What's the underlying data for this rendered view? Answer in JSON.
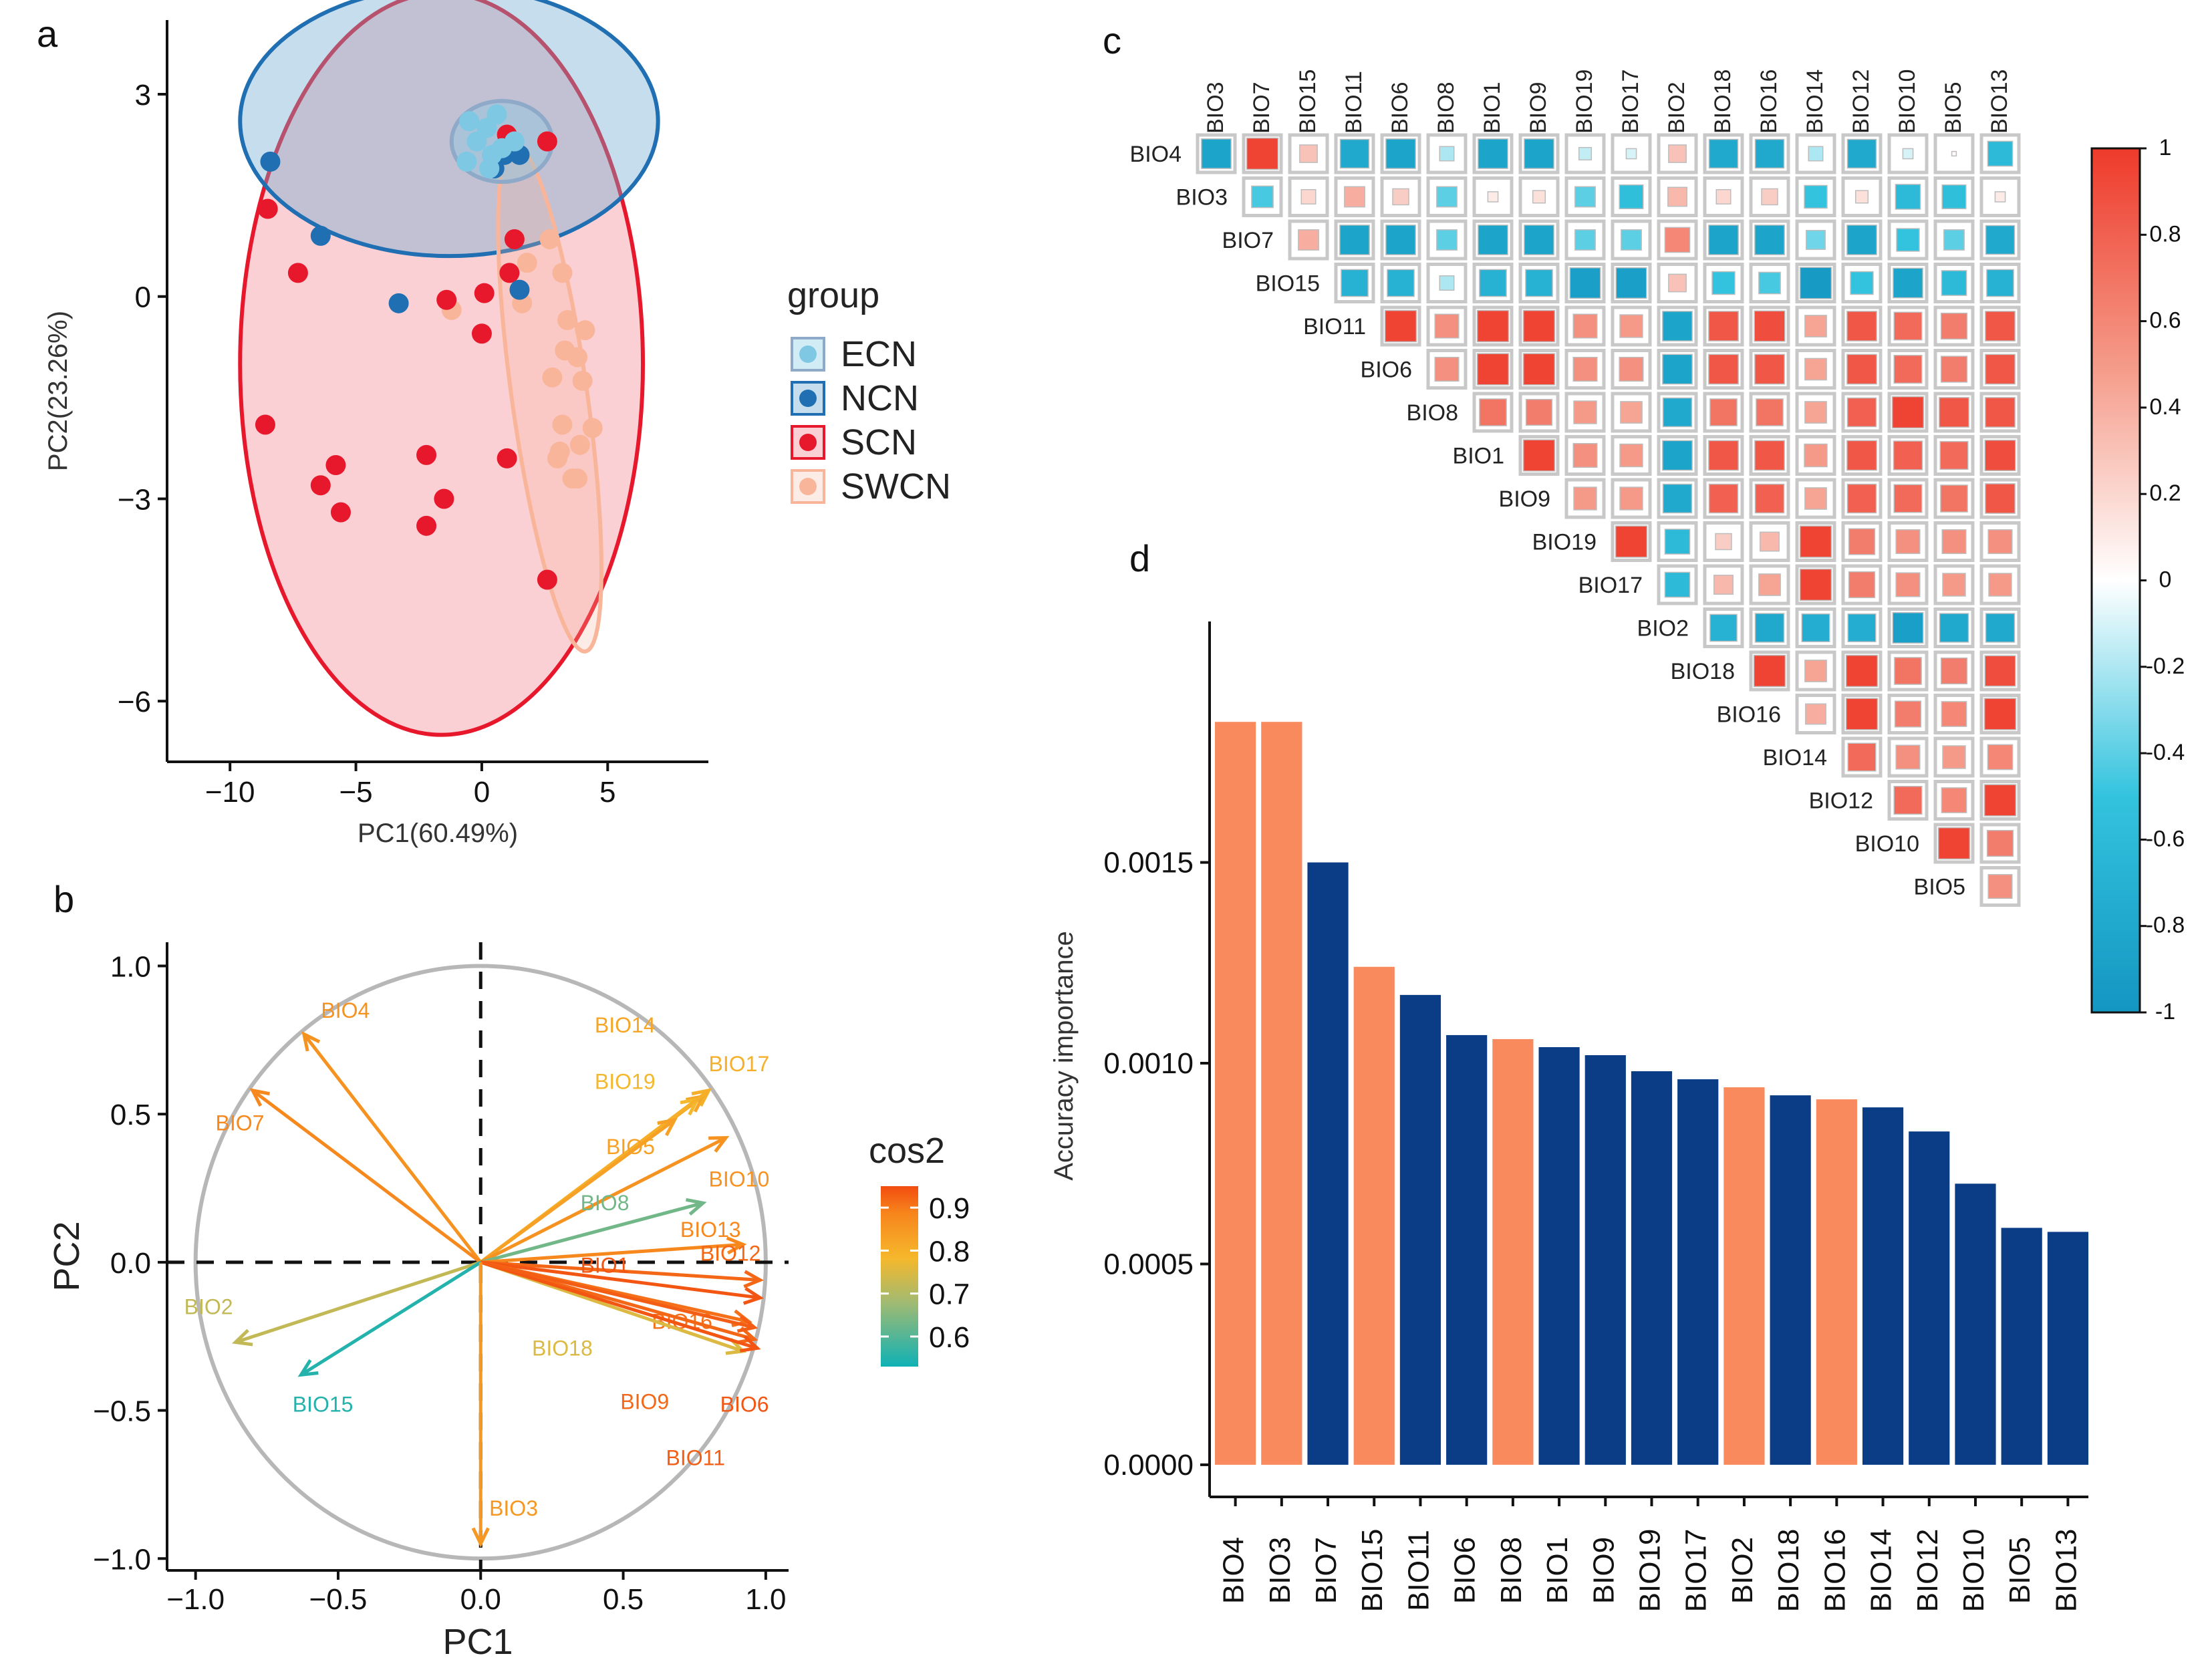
{
  "panel_letters": [
    "a",
    "b",
    "c",
    "d"
  ],
  "chart_data": [
    {
      "panel": "a",
      "type": "scatter",
      "xlabel": "PC1(60.49%)",
      "ylabel": "PC2(23.26%)",
      "xlim": [
        -12.5,
        9
      ],
      "ylim": [
        -6.9,
        4.1
      ],
      "xticks": [
        -10,
        -5,
        0,
        5
      ],
      "yticks": [
        -6,
        -3,
        0,
        3
      ],
      "xtick_labels": [
        "−10",
        "−5",
        "0",
        "5"
      ],
      "ytick_labels": [
        "−6",
        "−3",
        "0",
        "3"
      ],
      "legend_title": "group",
      "legend_position": "right",
      "series": [
        {
          "name": "ECN",
          "color": "#7ec8e3",
          "ellipse": {
            "cx": 0.8,
            "cy": 2.3,
            "rx": 2.0,
            "ry": 0.6,
            "angle": 0
          },
          "points": [
            [
              -0.5,
              2.6
            ],
            [
              0.2,
              2.5
            ],
            [
              0.6,
              2.7
            ],
            [
              -0.2,
              2.3
            ],
            [
              0.4,
              2.1
            ],
            [
              0.8,
              2.2
            ],
            [
              1.3,
              2.3
            ],
            [
              -0.6,
              2.0
            ],
            [
              0.3,
              1.9
            ]
          ]
        },
        {
          "name": "NCN",
          "color": "#1f6fb2",
          "ellipse": {
            "cx": -1.3,
            "cy": 2.6,
            "rx": 8.3,
            "ry": 2.0,
            "angle": 0
          },
          "points": [
            [
              -8.4,
              2.0
            ],
            [
              -6.4,
              0.9
            ],
            [
              -3.3,
              -0.1
            ],
            [
              0.9,
              2.1
            ],
            [
              1.5,
              2.1
            ],
            [
              1.5,
              0.1
            ],
            [
              0.5,
              1.9
            ]
          ]
        },
        {
          "name": "SCN",
          "color": "#e8182c",
          "ellipse": {
            "cx": -1.6,
            "cy": -1.0,
            "rx": 8.0,
            "ry": 5.5,
            "angle": 0
          },
          "points": [
            [
              1.0,
              2.4
            ],
            [
              2.6,
              2.3
            ],
            [
              -8.5,
              1.3
            ],
            [
              -7.3,
              0.35
            ],
            [
              -1.4,
              -0.05
            ],
            [
              0.1,
              0.05
            ],
            [
              1.1,
              0.35
            ],
            [
              1.3,
              0.85
            ],
            [
              0.0,
              -0.55
            ],
            [
              -8.6,
              -1.9
            ],
            [
              -5.8,
              -2.5
            ],
            [
              -6.4,
              -2.8
            ],
            [
              -5.6,
              -3.2
            ],
            [
              -2.2,
              -2.35
            ],
            [
              -1.5,
              -3.0
            ],
            [
              -2.2,
              -3.4
            ],
            [
              1.0,
              -2.4
            ],
            [
              2.6,
              -4.2
            ]
          ]
        },
        {
          "name": "SWCN",
          "color": "#f9b599",
          "ellipse": {
            "cx": 2.7,
            "cy": -1.5,
            "rx": 1.5,
            "ry": 3.8,
            "angle": -8
          },
          "points": [
            [
              2.7,
              0.85
            ],
            [
              1.8,
              0.5
            ],
            [
              3.2,
              0.35
            ],
            [
              -1.2,
              -0.2
            ],
            [
              1.6,
              -0.1
            ],
            [
              3.4,
              -0.35
            ],
            [
              4.1,
              -0.5
            ],
            [
              3.3,
              -0.8
            ],
            [
              3.8,
              -0.9
            ],
            [
              4.0,
              -1.25
            ],
            [
              2.8,
              -1.2
            ],
            [
              3.2,
              -1.9
            ],
            [
              3.9,
              -2.2
            ],
            [
              4.4,
              -1.95
            ],
            [
              3.6,
              -2.7
            ],
            [
              3.1,
              -2.3
            ],
            [
              3.8,
              -2.7
            ],
            [
              3.0,
              -2.4
            ]
          ]
        }
      ]
    },
    {
      "panel": "b",
      "type": "line",
      "subtype": "pca-variable-loadings",
      "xlabel": "PC1",
      "ylabel": "PC2",
      "xlim": [
        -1.1,
        1.08
      ],
      "ylim": [
        -1.04,
        1.08
      ],
      "xticks": [
        -1.0,
        -0.5,
        0.0,
        0.5,
        1.0
      ],
      "yticks": [
        -1.0,
        -0.5,
        0.0,
        0.5,
        1.0
      ],
      "xtick_labels": [
        "−1.0",
        "−0.5",
        "0.0",
        "0.5",
        "1.0"
      ],
      "ytick_labels": [
        "−1.0",
        "−0.5",
        "0.0",
        "0.5",
        "1.0"
      ],
      "legend_title": "cos2",
      "legend_ticks": [
        "0.9",
        "0.8",
        "0.7",
        "0.6"
      ],
      "legend_range": [
        0.53,
        0.95
      ],
      "variables": [
        {
          "name": "BIO4",
          "x": -0.62,
          "y": 0.77,
          "cos2": 0.86,
          "label_at": [
            -0.56,
            0.85
          ]
        },
        {
          "name": "BIO7",
          "x": -0.8,
          "y": 0.58,
          "cos2": 0.88,
          "label_at": [
            -0.93,
            0.47
          ]
        },
        {
          "name": "BIO14",
          "x": 0.78,
          "y": 0.56,
          "cos2": 0.82,
          "label_at": [
            0.4,
            0.8
          ]
        },
        {
          "name": "BIO19",
          "x": 0.76,
          "y": 0.55,
          "cos2": 0.78,
          "label_at": [
            0.4,
            0.61
          ]
        },
        {
          "name": "BIO17",
          "x": 0.8,
          "y": 0.58,
          "cos2": 0.8,
          "label_at": [
            0.8,
            0.67
          ]
        },
        {
          "name": "BIO5",
          "x": 0.68,
          "y": 0.48,
          "cos2": 0.83,
          "label_at": [
            0.44,
            0.39
          ]
        },
        {
          "name": "BIO10",
          "x": 0.86,
          "y": 0.42,
          "cos2": 0.86,
          "label_at": [
            0.8,
            0.28
          ]
        },
        {
          "name": "BIO8",
          "x": 0.78,
          "y": 0.2,
          "cos2": 0.63,
          "label_at": [
            0.35,
            0.2
          ]
        },
        {
          "name": "BIO13",
          "x": 0.92,
          "y": 0.06,
          "cos2": 0.88,
          "label_at": [
            0.7,
            0.11
          ]
        },
        {
          "name": "BIO12",
          "x": 0.98,
          "y": -0.06,
          "cos2": 0.92,
          "label_at": [
            0.77,
            0.03
          ]
        },
        {
          "name": "BIO1",
          "x": 0.98,
          "y": -0.12,
          "cos2": 0.94,
          "label_at": [
            0.35,
            -0.01
          ]
        },
        {
          "name": "BIO16",
          "x": 0.94,
          "y": -0.2,
          "cos2": 0.91,
          "label_at": [
            0.6,
            -0.2
          ]
        },
        {
          "name": "BIO18",
          "x": 0.92,
          "y": -0.3,
          "cos2": 0.75,
          "label_at": [
            0.18,
            -0.29
          ]
        },
        {
          "name": "BIO9",
          "x": 0.96,
          "y": -0.26,
          "cos2": 0.92,
          "label_at": [
            0.49,
            -0.47
          ]
        },
        {
          "name": "BIO6",
          "x": 0.97,
          "y": -0.29,
          "cos2": 0.94,
          "label_at": [
            0.84,
            -0.48
          ]
        },
        {
          "name": "BIO11",
          "x": 0.96,
          "y": -0.22,
          "cos2": 0.93,
          "label_at": [
            0.65,
            -0.66
          ]
        },
        {
          "name": "BIO2",
          "x": -0.86,
          "y": -0.27,
          "cos2": 0.72,
          "label_at": [
            -1.04,
            -0.15
          ]
        },
        {
          "name": "BIO15",
          "x": -0.63,
          "y": -0.38,
          "cos2": 0.55,
          "label_at": [
            -0.66,
            -0.48
          ]
        },
        {
          "name": "BIO3",
          "x": 0.0,
          "y": -0.95,
          "cos2": 0.85,
          "label_at": [
            0.03,
            -0.83
          ]
        }
      ]
    },
    {
      "panel": "c",
      "type": "heatmap",
      "title": "",
      "columns": [
        "BIO3",
        "BIO7",
        "BIO15",
        "BIO11",
        "BIO6",
        "BIO8",
        "BIO1",
        "BIO9",
        "BIO19",
        "BIO17",
        "BIO2",
        "BIO18",
        "BIO16",
        "BIO14",
        "BIO12",
        "BIO10",
        "BIO5",
        "BIO13"
      ],
      "rows": [
        "BIO4",
        "BIO3",
        "BIO7",
        "BIO15",
        "BIO11",
        "BIO6",
        "BIO8",
        "BIO1",
        "BIO9",
        "BIO19",
        "BIO17",
        "BIO2",
        "BIO18",
        "BIO16",
        "BIO14",
        "BIO12",
        "BIO10",
        "BIO5"
      ],
      "colorbar_ticks": [
        "1",
        "0.8",
        "0.6",
        "0.4",
        "0.2",
        "0",
        "-0.2",
        "-0.4",
        "-0.6",
        "-0.8",
        "-1"
      ],
      "colorbar_range": [
        -1,
        1
      ],
      "values": [
        [
          -0.85,
          0.95,
          0.3,
          -0.8,
          -0.85,
          -0.2,
          -0.85,
          -0.85,
          -0.15,
          -0.1,
          0.3,
          -0.8,
          -0.8,
          -0.2,
          -0.8,
          -0.1,
          0.02,
          -0.6
        ],
        [
          -0.45,
          0.2,
          0.4,
          0.25,
          -0.4,
          0.1,
          0.15,
          -0.4,
          -0.55,
          0.35,
          0.2,
          0.25,
          -0.5,
          0.15,
          -0.6,
          -0.55,
          0.1
        ],
        [
          0.4,
          -0.85,
          -0.85,
          -0.4,
          -0.85,
          -0.85,
          -0.4,
          -0.4,
          0.6,
          -0.85,
          -0.85,
          -0.35,
          -0.85,
          -0.5,
          -0.4,
          -0.8
        ],
        [
          -0.7,
          -0.7,
          -0.2,
          -0.7,
          -0.7,
          -0.9,
          -0.9,
          0.3,
          -0.5,
          -0.45,
          -0.95,
          -0.5,
          -0.85,
          -0.6,
          -0.7
        ],
        [
          0.95,
          0.55,
          0.95,
          0.95,
          0.55,
          0.5,
          -0.85,
          0.85,
          0.9,
          0.45,
          0.85,
          0.75,
          0.65,
          0.85
        ],
        [
          0.55,
          0.95,
          0.95,
          0.55,
          0.55,
          -0.85,
          0.85,
          0.85,
          0.45,
          0.85,
          0.75,
          0.65,
          0.85
        ],
        [
          0.7,
          0.65,
          0.5,
          0.45,
          -0.8,
          0.7,
          0.7,
          0.45,
          0.8,
          0.95,
          0.85,
          0.85
        ],
        [
          0.95,
          0.55,
          0.5,
          -0.85,
          0.85,
          0.85,
          0.5,
          0.85,
          0.8,
          0.75,
          0.9
        ],
        [
          0.5,
          0.5,
          -0.8,
          0.8,
          0.8,
          0.45,
          0.8,
          0.75,
          0.7,
          0.85
        ],
        [
          0.95,
          -0.6,
          0.25,
          0.35,
          0.95,
          0.65,
          0.55,
          0.55,
          0.55
        ],
        [
          -0.6,
          0.35,
          0.45,
          0.95,
          0.65,
          0.55,
          0.5,
          0.5
        ],
        [
          -0.7,
          -0.8,
          -0.75,
          -0.75,
          -0.9,
          -0.8,
          -0.8
        ],
        [
          0.95,
          0.45,
          0.95,
          0.7,
          0.65,
          0.9
        ],
        [
          0.4,
          0.95,
          0.65,
          0.6,
          0.95
        ],
        [
          0.75,
          0.55,
          0.5,
          0.6
        ],
        [
          0.75,
          0.6,
          0.95
        ],
        [
          0.95,
          0.65
        ],
        [
          0.55
        ]
      ]
    },
    {
      "panel": "d",
      "type": "bar",
      "ylabel": "Accuracy importance",
      "xlabel": "",
      "ylim": [
        -8e-05,
        0.0021
      ],
      "yticks": [
        0.0,
        0.0005,
        0.001,
        0.0015
      ],
      "ytick_labels": [
        "0.0000",
        "0.0005",
        "0.0010",
        "0.0015"
      ],
      "categories": [
        "BIO4",
        "BIO3",
        "BIO7",
        "BIO15",
        "BIO11",
        "BIO6",
        "BIO8",
        "BIO1",
        "BIO9",
        "BIO19",
        "BIO17",
        "BIO2",
        "BIO18",
        "BIO16",
        "BIO14",
        "BIO12",
        "BIO10",
        "BIO5",
        "BIO13"
      ],
      "values": [
        0.00185,
        0.00185,
        0.0015,
        0.00124,
        0.00117,
        0.00107,
        0.00106,
        0.00104,
        0.00102,
        0.00098,
        0.00096,
        0.00094,
        0.00092,
        0.00091,
        0.00089,
        0.00083,
        0.0007,
        0.00059,
        0.00058
      ],
      "bar_colors": [
        "#f98a5e",
        "#f98a5e",
        "#0b3d86",
        "#f98a5e",
        "#0b3d86",
        "#0b3d86",
        "#f98a5e",
        "#0b3d86",
        "#0b3d86",
        "#0b3d86",
        "#0b3d86",
        "#f98a5e",
        "#0b3d86",
        "#f98a5e",
        "#0b3d86",
        "#0b3d86",
        "#0b3d86",
        "#0b3d86",
        "#0b3d86"
      ]
    }
  ]
}
